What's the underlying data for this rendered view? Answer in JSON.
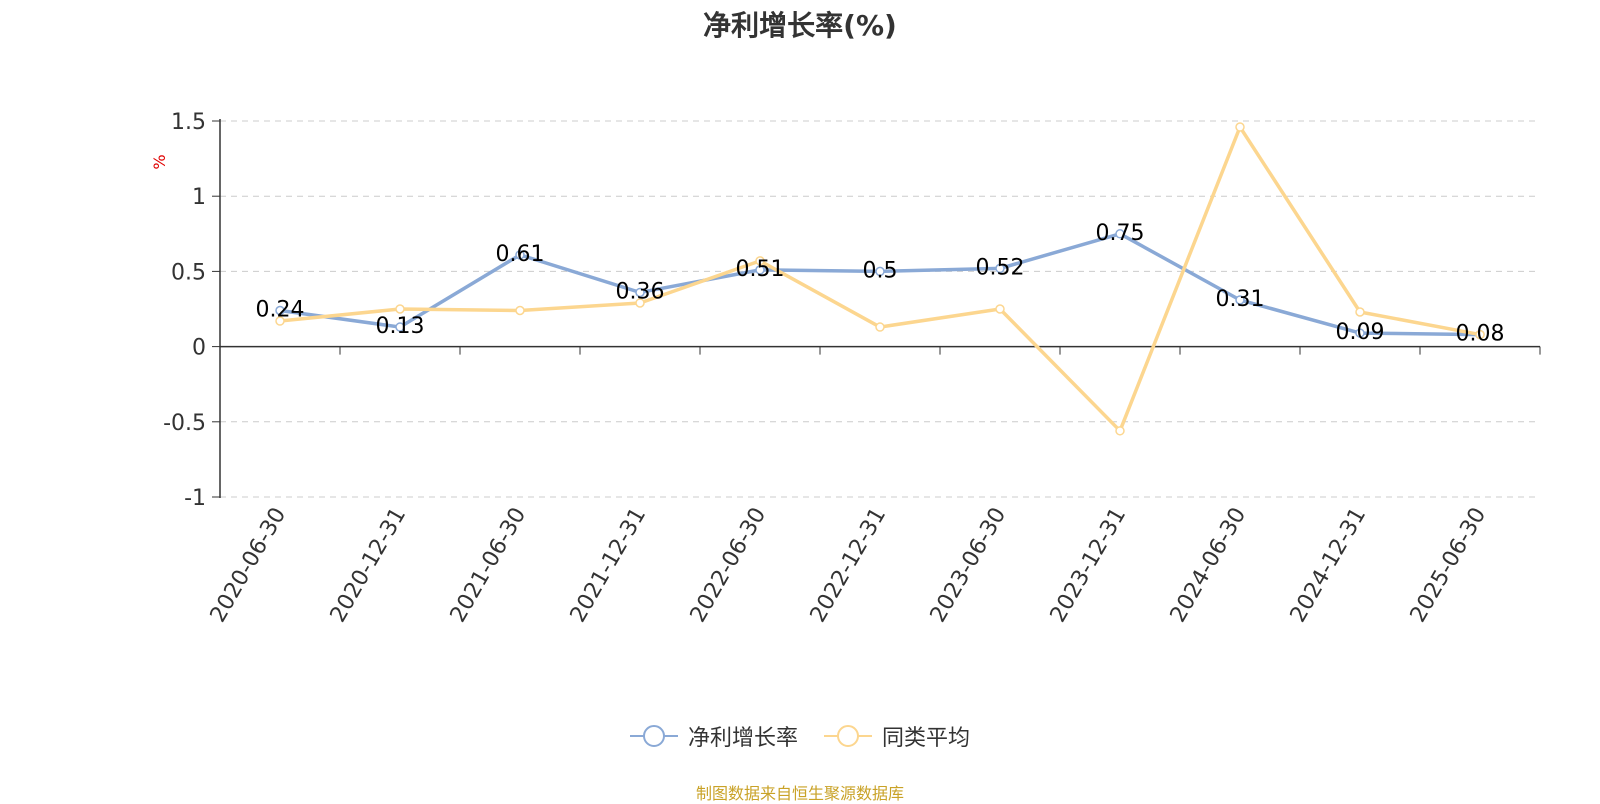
{
  "chart_data": {
    "type": "line",
    "title": "净利增长率(%)",
    "ylabel": "%",
    "ylim": [
      -1,
      1.5
    ],
    "yticks": [
      "1.5",
      "1",
      "0.5",
      "0",
      "-0.5",
      "-1"
    ],
    "ytick_values": [
      1.5,
      1,
      0.5,
      0,
      -0.5,
      -1
    ],
    "categories": [
      "2020-06-30",
      "2020-12-31",
      "2021-06-30",
      "2021-12-31",
      "2022-06-30",
      "2022-12-31",
      "2023-06-30",
      "2023-12-31",
      "2024-06-30",
      "2024-12-31",
      "2025-06-30"
    ],
    "series": [
      {
        "name": "净利增长率",
        "color": "#8aa9d6",
        "show_labels": true,
        "values": [
          0.24,
          0.13,
          0.61,
          0.36,
          0.51,
          0.5,
          0.52,
          0.75,
          0.31,
          0.09,
          0.08
        ]
      },
      {
        "name": "同类平均",
        "color": "#fcd68f",
        "show_labels": false,
        "values": [
          0.17,
          0.25,
          0.24,
          0.29,
          0.57,
          0.13,
          0.25,
          -0.56,
          1.46,
          0.23,
          0.08
        ]
      }
    ],
    "grid": true,
    "legend_position": "bottom"
  },
  "source_note": "制图数据来自恒生聚源数据库",
  "colors": {
    "axis": "#333333",
    "grid": "#cccccc",
    "ylabel": "#e00000",
    "source": "#c9a227"
  }
}
